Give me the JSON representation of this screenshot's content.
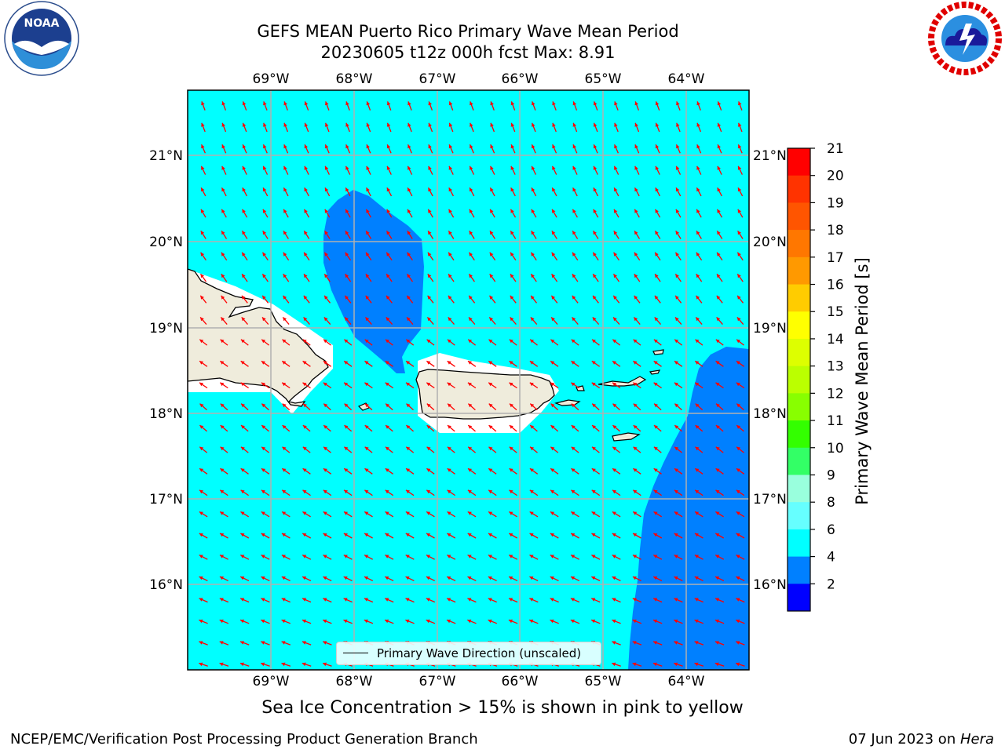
{
  "title": {
    "line1": "GEFS MEAN Puerto Rico Primary Wave Mean Period",
    "line2": "20230605 t12z 000h fcst   Max: 8.91"
  },
  "map": {
    "lon_labels": [
      "69°W",
      "68°W",
      "67°W",
      "66°W",
      "65°W",
      "64°W"
    ],
    "lat_labels": [
      "21°N",
      "20°N",
      "19°N",
      "18°N",
      "17°N",
      "16°N"
    ],
    "colors": {
      "ocean_main": "#00ffff",
      "ocean_low": "#0080ff",
      "land": "#efecdc",
      "arrows": "#ff0000",
      "grid": "#b0b0b0"
    }
  },
  "legend": {
    "label": "Primary Wave Direction (unscaled)"
  },
  "colorbar": {
    "label": "Primary Wave Mean Period [s]",
    "ticks": [
      "21",
      "20",
      "19",
      "18",
      "17",
      "16",
      "15",
      "14",
      "13",
      "12",
      "11",
      "10",
      "9",
      "8",
      "6",
      "4",
      "2"
    ],
    "colors": [
      "#ff0000",
      "#ff3300",
      "#ff5500",
      "#ff7700",
      "#ff9900",
      "#ffcc00",
      "#ffff00",
      "#ddff00",
      "#bbff00",
      "#88ff00",
      "#33ff00",
      "#33ff66",
      "#99ffdd",
      "#66ffff",
      "#00ffff",
      "#0080ff",
      "#0000ff"
    ]
  },
  "logos": {
    "noaa": "NOAA",
    "nws": "NATIONAL WEATHER SERVICE"
  },
  "note": "Sea Ice Concentration > 15% is shown in pink to yellow",
  "footer": {
    "left": "NCEP/EMC/Verification Post Processing Product Generation Branch",
    "right_prefix": "07 Jun 2023 on ",
    "right_machine": "Hera"
  }
}
